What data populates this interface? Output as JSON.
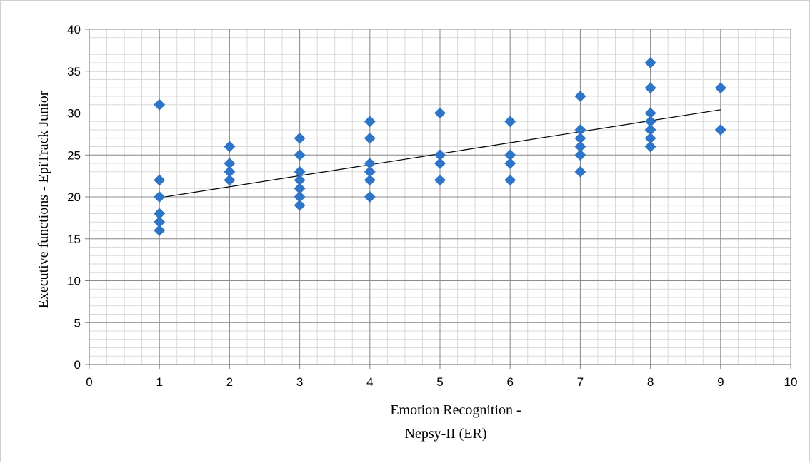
{
  "chart_data": {
    "type": "scatter",
    "title": "",
    "xlabel_lines": [
      "Emotion Recognition -",
      "Nepsy-II (ER)"
    ],
    "ylabel": "Executive functions - EpiTrack Junior",
    "xlim": [
      0,
      10
    ],
    "ylim": [
      0,
      40
    ],
    "x_ticks": [
      0,
      1,
      2,
      3,
      4,
      5,
      6,
      7,
      8,
      9,
      10
    ],
    "y_ticks": [
      0,
      5,
      10,
      15,
      20,
      25,
      30,
      35,
      40
    ],
    "grid": true,
    "minor_grid": {
      "x_step": 0.25,
      "y_step": 1
    },
    "marker": "diamond",
    "marker_color": "#2e75c8",
    "trendline": {
      "type": "linear",
      "x": [
        1,
        9
      ],
      "y": [
        19.9,
        30.4
      ],
      "color": "#000000"
    },
    "points": [
      {
        "x": 1,
        "y": 31
      },
      {
        "x": 1,
        "y": 22
      },
      {
        "x": 1,
        "y": 20
      },
      {
        "x": 1,
        "y": 18
      },
      {
        "x": 1,
        "y": 17
      },
      {
        "x": 1,
        "y": 16
      },
      {
        "x": 2,
        "y": 26
      },
      {
        "x": 2,
        "y": 24
      },
      {
        "x": 2,
        "y": 23
      },
      {
        "x": 2,
        "y": 22
      },
      {
        "x": 3,
        "y": 27
      },
      {
        "x": 3,
        "y": 25
      },
      {
        "x": 3,
        "y": 23
      },
      {
        "x": 3,
        "y": 22
      },
      {
        "x": 3,
        "y": 21
      },
      {
        "x": 3,
        "y": 20
      },
      {
        "x": 3,
        "y": 19
      },
      {
        "x": 4,
        "y": 29
      },
      {
        "x": 4,
        "y": 27
      },
      {
        "x": 4,
        "y": 24
      },
      {
        "x": 4,
        "y": 23
      },
      {
        "x": 4,
        "y": 22
      },
      {
        "x": 4,
        "y": 20
      },
      {
        "x": 5,
        "y": 30
      },
      {
        "x": 5,
        "y": 25
      },
      {
        "x": 5,
        "y": 24
      },
      {
        "x": 5,
        "y": 22
      },
      {
        "x": 6,
        "y": 29
      },
      {
        "x": 6,
        "y": 25
      },
      {
        "x": 6,
        "y": 24
      },
      {
        "x": 6,
        "y": 22
      },
      {
        "x": 7,
        "y": 32
      },
      {
        "x": 7,
        "y": 28
      },
      {
        "x": 7,
        "y": 27
      },
      {
        "x": 7,
        "y": 26
      },
      {
        "x": 7,
        "y": 25
      },
      {
        "x": 7,
        "y": 23
      },
      {
        "x": 8,
        "y": 36
      },
      {
        "x": 8,
        "y": 33
      },
      {
        "x": 8,
        "y": 30
      },
      {
        "x": 8,
        "y": 29
      },
      {
        "x": 8,
        "y": 28
      },
      {
        "x": 8,
        "y": 27
      },
      {
        "x": 8,
        "y": 26
      },
      {
        "x": 9,
        "y": 33
      },
      {
        "x": 9,
        "y": 28
      }
    ]
  }
}
